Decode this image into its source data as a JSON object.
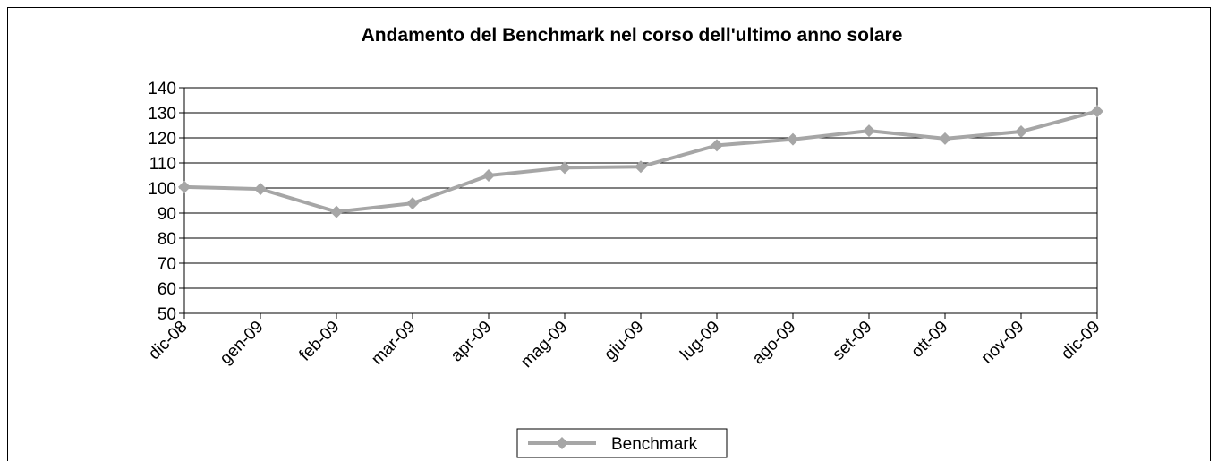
{
  "chart_data": {
    "type": "line",
    "title": "Andamento del Benchmark nel corso dell'ultimo anno solare",
    "categories": [
      "dic-08",
      "gen-09",
      "feb-09",
      "mar-09",
      "apr-09",
      "mag-09",
      "giu-09",
      "lug-09",
      "ago-09",
      "set-09",
      "ott-09",
      "nov-09",
      "dic-09"
    ],
    "series": [
      {
        "name": "Benchmark",
        "color": "#a6a6a6",
        "values": [
          100.4,
          99.6,
          90.5,
          93.9,
          105,
          108.1,
          108.5,
          117,
          119.4,
          122.8,
          119.7,
          122.5,
          130.6
        ]
      }
    ],
    "ylim": [
      50,
      140
    ],
    "yticks": [
      50,
      60,
      70,
      80,
      90,
      100,
      110,
      120,
      130,
      140
    ],
    "grid": true,
    "legend": "bottom"
  }
}
